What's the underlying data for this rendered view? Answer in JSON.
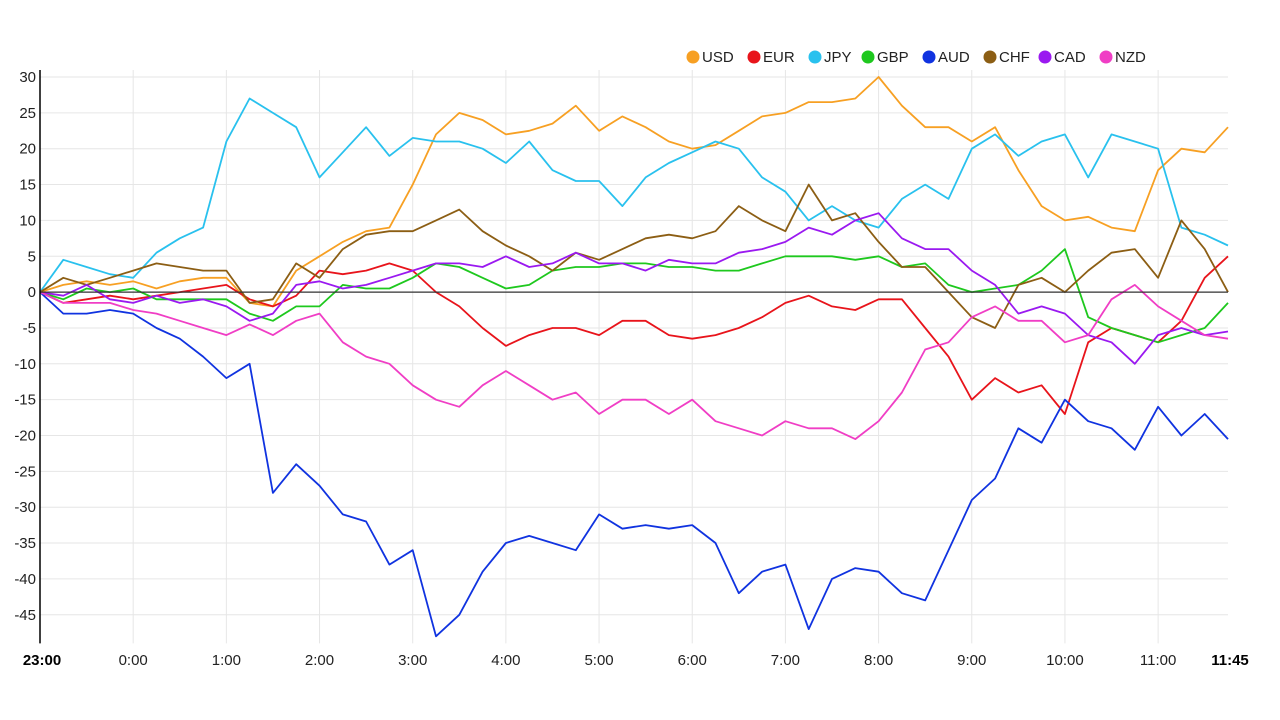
{
  "chart_data": {
    "type": "line",
    "title": "",
    "xlabel": "",
    "ylabel": "",
    "ylim": [
      -49,
      30
    ],
    "y_ticks": [
      30,
      25,
      20,
      15,
      10,
      5,
      0,
      -5,
      -10,
      -15,
      -20,
      -25,
      -30,
      -35,
      -40,
      -45
    ],
    "x_start_label": "23:00",
    "x_end_label": "11:45",
    "x_interval_minutes": 15,
    "x_ticks": [
      "23:00",
      "0:00",
      "1:00",
      "2:00",
      "3:00",
      "4:00",
      "5:00",
      "6:00",
      "7:00",
      "8:00",
      "9:00",
      "10:00",
      "11:00",
      "11:45"
    ],
    "grid": true,
    "legend_position": "top-right",
    "series": [
      {
        "name": "USD",
        "color": "#f7a023",
        "values": [
          0,
          1,
          1.5,
          1,
          1.5,
          0.5,
          1.5,
          2,
          2,
          -1.5,
          -2,
          3,
          5,
          7,
          8.5,
          9,
          15,
          22,
          25,
          24,
          22,
          22.5,
          23.5,
          26,
          22.5,
          24.5,
          23,
          21,
          20,
          20.5,
          22.5,
          24.5,
          25,
          26.5,
          26.5,
          27,
          30,
          26,
          23,
          23,
          21,
          23,
          17,
          12,
          10,
          10.5,
          9,
          8.5,
          17,
          20,
          19.5,
          23
        ]
      },
      {
        "name": "EUR",
        "color": "#e8141b",
        "values": [
          0,
          -1.5,
          -1,
          -0.5,
          -1,
          -0.5,
          0,
          0.5,
          1,
          -1,
          -2,
          -0.5,
          3,
          2.5,
          3,
          4,
          3,
          0,
          -2,
          -5,
          -7.5,
          -6,
          -5,
          -5,
          -6,
          -4,
          -4,
          -6,
          -6.5,
          -6,
          -5,
          -3.5,
          -1.5,
          -0.5,
          -2,
          -2.5,
          -1,
          -1,
          -5,
          -9,
          -15,
          -12,
          -14,
          -13,
          -17,
          -7,
          -5,
          -6,
          -7,
          -4,
          2,
          5
        ]
      },
      {
        "name": "JPY",
        "color": "#29c1ee",
        "values": [
          0,
          4.5,
          3.5,
          2.5,
          2,
          5.5,
          7.5,
          9,
          21,
          27,
          25,
          23,
          16,
          19.5,
          23,
          19,
          21.5,
          21,
          21,
          20,
          18,
          21,
          17,
          15.5,
          15.5,
          12,
          16,
          18,
          19.5,
          21,
          20,
          16,
          14,
          10,
          12,
          10,
          9,
          13,
          15,
          13,
          20,
          22,
          19,
          21,
          22,
          16,
          22,
          21,
          20,
          9,
          8,
          6.5
        ]
      },
      {
        "name": "GBP",
        "color": "#1ec81e",
        "values": [
          0,
          -1,
          0.5,
          0,
          0.5,
          -1,
          -1,
          -1,
          -1,
          -3,
          -4,
          -2,
          -2,
          1,
          0.5,
          0.5,
          2,
          4,
          3.5,
          2,
          0.5,
          1,
          3,
          3.5,
          3.5,
          4,
          4,
          3.5,
          3.5,
          3,
          3,
          4,
          5,
          5,
          5,
          4.5,
          5,
          3.5,
          4,
          1,
          0,
          0.5,
          1,
          3,
          6,
          -3.5,
          -5,
          -6,
          -7,
          -6,
          -5,
          -1.5
        ]
      },
      {
        "name": "AUD",
        "color": "#1033e0",
        "values": [
          0,
          -3,
          -3,
          -2.5,
          -3,
          -5,
          -6.5,
          -9,
          -12,
          -10,
          -28,
          -24,
          -27,
          -31,
          -32,
          -38,
          -36,
          -48,
          -45,
          -39,
          -35,
          -34,
          -35,
          -36,
          -31,
          -33,
          -32.5,
          -33,
          -32.5,
          -35,
          -42,
          -39,
          -38,
          -47,
          -40,
          -38.5,
          -39,
          -42,
          -43,
          -36,
          -29,
          -26,
          -19,
          -21,
          -15,
          -18,
          -19,
          -22,
          -16,
          -20,
          -17,
          -20.5
        ]
      },
      {
        "name": "CHF",
        "color": "#8c5e14",
        "values": [
          0,
          2,
          1,
          2,
          3,
          4,
          3.5,
          3,
          3,
          -1.5,
          -1,
          4,
          2,
          6,
          8,
          8.5,
          8.5,
          10,
          11.5,
          8.5,
          6.5,
          5,
          3,
          5.5,
          4.5,
          6,
          7.5,
          8,
          7.5,
          8.5,
          12,
          10,
          8.5,
          15,
          10,
          11,
          7,
          3.5,
          3.5,
          0,
          -3.5,
          -5,
          1,
          2,
          0,
          3,
          5.5,
          6,
          2,
          10,
          6,
          0
        ]
      },
      {
        "name": "CAD",
        "color": "#9a19f0",
        "values": [
          0,
          -0.5,
          1,
          -1,
          -1.5,
          -0.5,
          -1.5,
          -1,
          -2,
          -4,
          -3,
          1,
          1.5,
          0.5,
          1,
          2,
          3,
          4,
          4,
          3.5,
          5,
          3.5,
          4,
          5.5,
          4,
          4,
          3,
          4.5,
          4,
          4,
          5.5,
          6,
          7,
          9,
          8,
          10,
          11,
          7.5,
          6,
          6,
          3,
          1,
          -3,
          -2,
          -3,
          -6,
          -7,
          -10,
          -6,
          -5,
          -6,
          -5.5
        ]
      },
      {
        "name": "NZD",
        "color": "#f03ec5",
        "values": [
          0,
          -1.5,
          -1.5,
          -1.5,
          -2.5,
          -3,
          -4,
          -5,
          -6,
          -4.5,
          -6,
          -4,
          -3,
          -7,
          -9,
          -10,
          -13,
          -15,
          -16,
          -13,
          -11,
          -13,
          -15,
          -14,
          -17,
          -15,
          -15,
          -17,
          -15,
          -18,
          -19,
          -20,
          -18,
          -19,
          -19,
          -20.5,
          -18,
          -14,
          -8,
          -7,
          -3.5,
          -2,
          -4,
          -4,
          -7,
          -6,
          -1,
          1,
          -2,
          -4,
          -6,
          -6.5
        ]
      }
    ]
  }
}
